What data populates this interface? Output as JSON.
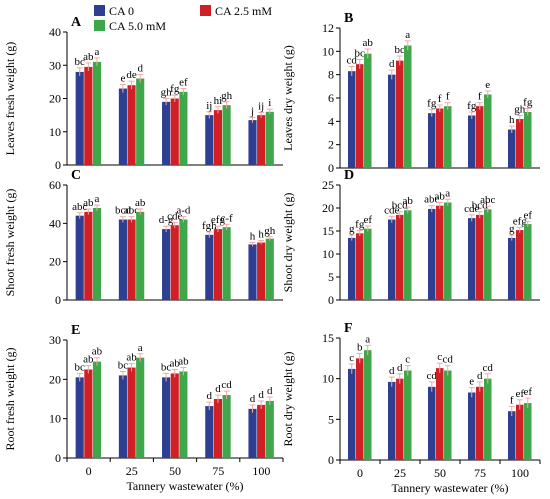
{
  "figure": {
    "legend": [
      {
        "label": "CA 0",
        "color": "#2e3f92"
      },
      {
        "label": "CA 2.5 mM",
        "color": "#d11f26"
      },
      {
        "label": "CA 5.0 mM",
        "color": "#3fa74a"
      }
    ],
    "xlabel": "Tannery wastewater (%)"
  },
  "chart_data": [
    {
      "panel": "A",
      "type": "bar",
      "ylabel": "Leaves fresh weight (g)",
      "categories": [
        "0",
        "25",
        "50",
        "75",
        "100"
      ],
      "ylim": [
        0,
        40
      ],
      "yticks": [
        0,
        10,
        20,
        30,
        40
      ],
      "series": [
        {
          "name": "CA 0",
          "values": [
            28,
            23,
            19,
            15,
            13.5
          ],
          "errors": [
            1.2,
            1.2,
            1.0,
            1.0,
            0.8
          ]
        },
        {
          "name": "CA 2.5 mM",
          "values": [
            29.5,
            24,
            20,
            16.5,
            15
          ],
          "errors": [
            1.2,
            1.2,
            1.0,
            1.0,
            0.8
          ]
        },
        {
          "name": "CA 5.0 mM",
          "values": [
            31,
            26,
            22,
            18,
            16
          ],
          "errors": [
            1.2,
            1.2,
            1.0,
            1.0,
            0.8
          ]
        }
      ],
      "labels": [
        [
          "bc",
          "ab",
          "a"
        ],
        [
          "e",
          "de",
          "d"
        ],
        [
          "gh",
          "fg",
          "ef"
        ],
        [
          "ij",
          "hi",
          "gh"
        ],
        [
          "j",
          "ij",
          "i"
        ]
      ],
      "show_xticklabels": false,
      "show_xlabel": false
    },
    {
      "panel": "B",
      "type": "bar",
      "ylabel": "Leaves dry weight (g)",
      "categories": [
        "0",
        "25",
        "50",
        "75",
        "100"
      ],
      "ylim": [
        0,
        12
      ],
      "yticks": [
        0,
        2,
        4,
        6,
        8,
        10,
        12
      ],
      "series": [
        {
          "name": "CA 0",
          "values": [
            8.3,
            8.0,
            4.7,
            4.5,
            3.3
          ],
          "errors": [
            0.4,
            0.4,
            0.3,
            0.3,
            0.3
          ]
        },
        {
          "name": "CA 2.5 mM",
          "values": [
            8.9,
            9.2,
            5.1,
            5.3,
            4.2
          ],
          "errors": [
            0.4,
            0.4,
            0.3,
            0.3,
            0.3
          ]
        },
        {
          "name": "CA 5.0 mM",
          "values": [
            9.8,
            10.5,
            5.3,
            6.3,
            4.8
          ],
          "errors": [
            0.4,
            0.4,
            0.3,
            0.3,
            0.3
          ]
        }
      ],
      "labels": [
        [
          "cd",
          "bc",
          "ab"
        ],
        [
          "d",
          "bc",
          "a"
        ],
        [
          "fg",
          "f",
          "f"
        ],
        [
          "fg",
          "f",
          "e"
        ],
        [
          "h",
          "gh",
          "fg"
        ]
      ],
      "show_xticklabels": false,
      "show_xlabel": false
    },
    {
      "panel": "C",
      "type": "bar",
      "ylabel": "Shoot fresh weight (g)",
      "categories": [
        "0",
        "25",
        "50",
        "75",
        "100"
      ],
      "ylim": [
        0,
        60
      ],
      "yticks": [
        0,
        20,
        40,
        60
      ],
      "series": [
        {
          "name": "CA 0",
          "values": [
            44,
            42,
            37,
            34,
            29
          ],
          "errors": [
            1.5,
            1.5,
            1.5,
            1.5,
            1.0
          ]
        },
        {
          "name": "CA 2.5 mM",
          "values": [
            46,
            42,
            39,
            37,
            30
          ],
          "errors": [
            1.5,
            1.5,
            1.5,
            1.5,
            1.0
          ]
        },
        {
          "name": "CA 5.0 mM",
          "values": [
            48,
            46,
            42,
            38,
            32
          ],
          "errors": [
            1.5,
            1.5,
            1.5,
            1.5,
            1.0
          ]
        }
      ],
      "labels": [
        [
          "abc",
          "ab",
          "a"
        ],
        [
          "bcd",
          "abc",
          "ab"
        ],
        [
          "d-g",
          "cde",
          "a-d"
        ],
        [
          "fgh",
          "efg",
          "c-f"
        ],
        [
          "h",
          "h",
          "gh"
        ]
      ],
      "show_xticklabels": false,
      "show_xlabel": false
    },
    {
      "panel": "D",
      "type": "bar",
      "ylabel": "Shoot dry weight (g)",
      "categories": [
        "0",
        "25",
        "50",
        "75",
        "100"
      ],
      "ylim": [
        0,
        25
      ],
      "yticks": [
        0,
        5,
        10,
        15,
        20,
        25
      ],
      "series": [
        {
          "name": "CA 0",
          "values": [
            13.5,
            17.5,
            19.8,
            17.8,
            13.5
          ],
          "errors": [
            0.6,
            0.7,
            0.7,
            0.7,
            0.6
          ]
        },
        {
          "name": "CA 2.5 mM",
          "values": [
            14.5,
            18.5,
            20.5,
            18.5,
            15.2
          ],
          "errors": [
            0.6,
            0.7,
            0.7,
            0.7,
            0.6
          ]
        },
        {
          "name": "CA 5.0 mM",
          "values": [
            15.5,
            19.5,
            21.2,
            19.7,
            16.5
          ],
          "errors": [
            0.6,
            0.7,
            0.7,
            0.7,
            0.6
          ]
        }
      ],
      "labels": [
        [
          "g",
          "fg",
          "ef"
        ],
        [
          "cde",
          "bcd",
          "ab"
        ],
        [
          "abc",
          "ab",
          "a"
        ],
        [
          "cde",
          "bcd",
          "abc"
        ],
        [
          "g",
          "efg",
          "ef"
        ]
      ],
      "show_xticklabels": false,
      "show_xlabel": false
    },
    {
      "panel": "E",
      "type": "bar",
      "ylabel": "Root fresh weight (g)",
      "categories": [
        "0",
        "25",
        "50",
        "75",
        "100"
      ],
      "ylim": [
        0,
        30
      ],
      "yticks": [
        0,
        10,
        20,
        30
      ],
      "series": [
        {
          "name": "CA 0",
          "values": [
            20.5,
            21,
            20.5,
            13.2,
            12.5
          ],
          "errors": [
            1.0,
            1.0,
            1.0,
            1.0,
            1.0
          ]
        },
        {
          "name": "CA 2.5 mM",
          "values": [
            22.5,
            23,
            21.5,
            15,
            13.5
          ],
          "errors": [
            1.0,
            1.0,
            1.0,
            1.0,
            1.0
          ]
        },
        {
          "name": "CA 5.0 mM",
          "values": [
            24.5,
            25.5,
            22,
            16,
            14.5
          ],
          "errors": [
            1.0,
            1.0,
            1.0,
            1.0,
            1.0
          ]
        }
      ],
      "labels": [
        [
          "bc",
          "ab",
          "ab"
        ],
        [
          "bc",
          "ab",
          "a"
        ],
        [
          "bc",
          "ab",
          "ab"
        ],
        [
          "d",
          "d",
          "cd"
        ],
        [
          "d",
          "d",
          "d"
        ]
      ],
      "show_xticklabels": true,
      "show_xlabel": true
    },
    {
      "panel": "F",
      "type": "bar",
      "ylabel": "Root dry weight (g)",
      "categories": [
        "0",
        "25",
        "50",
        "75",
        "100"
      ],
      "ylim": [
        0,
        15
      ],
      "yticks": [
        0,
        5,
        10,
        15
      ],
      "series": [
        {
          "name": "CA 0",
          "values": [
            11.2,
            9.6,
            9.0,
            8.3,
            6.0
          ],
          "errors": [
            0.6,
            0.6,
            0.6,
            0.6,
            0.6
          ]
        },
        {
          "name": "CA 2.5 mM",
          "values": [
            12.5,
            10.0,
            11.3,
            9.0,
            6.8
          ],
          "errors": [
            0.6,
            0.6,
            0.6,
            0.6,
            0.6
          ]
        },
        {
          "name": "CA 5.0 mM",
          "values": [
            13.5,
            11.0,
            11.0,
            10.0,
            7.0
          ],
          "errors": [
            0.6,
            0.6,
            0.6,
            0.6,
            0.6
          ]
        }
      ],
      "labels": [
        [
          "c",
          "b",
          "a"
        ],
        [
          "d",
          "d",
          "c"
        ],
        [
          "cd",
          "c",
          "cd"
        ],
        [
          "e",
          "d",
          "cd"
        ],
        [
          "f",
          "ef",
          "ef"
        ]
      ],
      "show_xticklabels": true,
      "show_xlabel": true
    }
  ]
}
